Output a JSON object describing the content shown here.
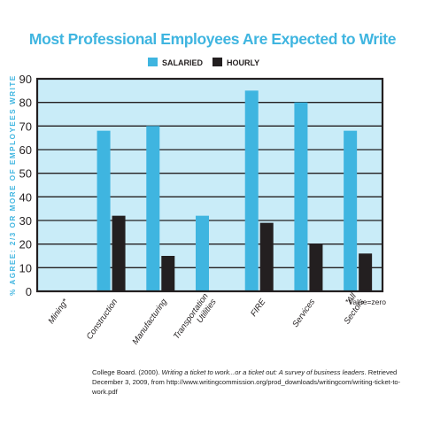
{
  "colors": {
    "title": "#3fb5e0",
    "plot_bg": "#c9ecf8",
    "salaried": "#3fb5e0",
    "hourly": "#231f20",
    "axis_label": "#3fb5e0"
  },
  "chart_data": {
    "type": "bar",
    "title": "Most Professional Employees Are Expected to Write",
    "ylabel": "% AGREE: 2/3 OR MORE OF EMPLOYEES WRITE",
    "xlabel": "",
    "ylim": [
      0,
      90
    ],
    "yticks": [
      0,
      10,
      20,
      30,
      40,
      50,
      60,
      70,
      80,
      90
    ],
    "grid": true,
    "legend_position": "top",
    "categories": [
      "Mining*",
      "Construction",
      "Manufacturing",
      "Transportation Utilities",
      "FIRE",
      "Services",
      "All Sectors"
    ],
    "series": [
      {
        "name": "SALARIED",
        "values": [
          0,
          68,
          70,
          32,
          85,
          80,
          68
        ]
      },
      {
        "name": "HOURLY",
        "values": [
          0,
          32,
          15,
          0,
          29,
          20,
          16
        ]
      }
    ],
    "annotation": "*Value=zero"
  },
  "citation": {
    "prefix": "College Board. (2000). ",
    "italic": "Writing a ticket to work...or a ticket out: A survey of business leaders",
    "suffix": ". Retrieved December 3, 2009, from http://www.writingcommission.org/prod_downloads/writingcom/writing-ticket-to-work.pdf"
  }
}
